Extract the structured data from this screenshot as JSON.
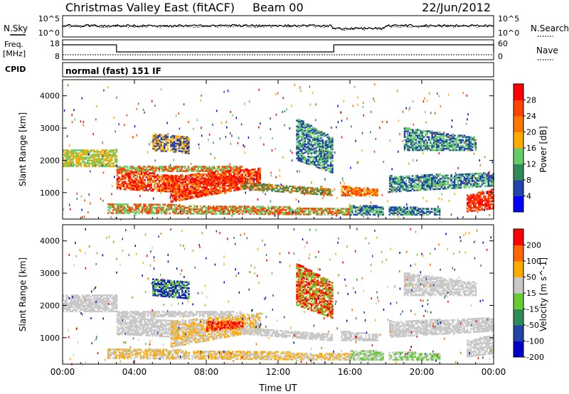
{
  "header": {
    "title": "Christmas Valley East (fitACF)",
    "beam": "Beam 00",
    "date": "22/Jun/2012"
  },
  "noise_panel": {
    "left_label": "N.Sky",
    "right_label": "N.Search",
    "left_ticks": [
      "10^5",
      "10^0"
    ],
    "right_ticks": [
      "10^5",
      "10^0"
    ]
  },
  "freq_panel": {
    "left_label_line1": "Freq.",
    "left_label_line2": "[MHz]",
    "right_label": "Nave",
    "left_ticks": [
      "18",
      "8"
    ],
    "right_ticks": [
      "60",
      "0"
    ]
  },
  "cpid": {
    "label": "CPID",
    "value": "normal (fast) 151 IF"
  },
  "chart_data": [
    {
      "type": "heatmap",
      "title": "",
      "xlabel": "",
      "ylabel": "Slant Range [km]",
      "x_ticks": [
        "00:00",
        "04:00",
        "08:00",
        "12:00",
        "16:00",
        "20:00",
        "00:00"
      ],
      "y_ticks": [
        1000,
        2000,
        3000,
        4000
      ],
      "xlim_hours": [
        0,
        24
      ],
      "ylim_km": [
        180,
        4500
      ],
      "colorbar": {
        "label": "Power [dB]",
        "ticks": [
          "28",
          "24",
          "20",
          "16",
          "12",
          "8",
          "4"
        ],
        "colors": [
          "#0000ff",
          "#2244aa",
          "#2e8b57",
          "#66cc66",
          "#ffaa00",
          "#ff7700",
          "#ff4400",
          "#ff0000"
        ]
      }
    },
    {
      "type": "heatmap",
      "title": "",
      "xlabel": "Time UT",
      "ylabel": "Slant Range [km]",
      "x_ticks": [
        "00:00",
        "04:00",
        "08:00",
        "12:00",
        "16:00",
        "20:00",
        "00:00"
      ],
      "y_ticks": [
        1000,
        2000,
        3000,
        4000
      ],
      "xlim_hours": [
        0,
        24
      ],
      "ylim_km": [
        180,
        4500
      ],
      "colorbar": {
        "label": "Velocity [m s^-1]",
        "ticks": [
          "200",
          "100",
          "50",
          "15",
          "-15",
          "-50",
          "-100",
          "-200"
        ],
        "colors": [
          "#0000cc",
          "#2244aa",
          "#2e8b57",
          "#66cc33",
          "#c8c8c8",
          "#ffaa00",
          "#ff6600",
          "#ff0000"
        ]
      }
    }
  ]
}
